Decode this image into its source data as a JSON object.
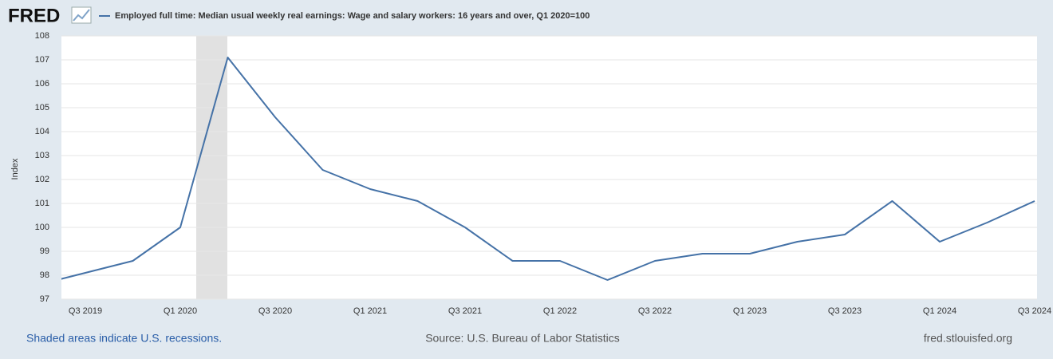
{
  "chart_data": {
    "type": "line",
    "logo": "FRED",
    "y_label": "Index",
    "note": "Shaded areas indicate U.S. recessions.",
    "source": "Source: U.S. Bureau of Labor Statistics",
    "site": "fred.stlouisfed.org",
    "categories": [
      null,
      "Q3 2019",
      null,
      "Q1 2020",
      null,
      "Q3 2020",
      null,
      "Q1 2021",
      null,
      "Q3 2021",
      null,
      "Q1 2022",
      null,
      "Q3 2022",
      null,
      "Q1 2023",
      null,
      "Q3 2023",
      null,
      "Q1 2024",
      null,
      "Q3 2024"
    ],
    "series": [
      {
        "name": "Employed full time: Median usual weekly real earnings: Wage and salary workers: 16 years and over, Q1 2020=100",
        "color": "#4572a7",
        "values": [
          97.6,
          98.1,
          98.6,
          100.0,
          107.1,
          104.6,
          102.4,
          101.6,
          101.1,
          100.0,
          98.6,
          98.6,
          97.8,
          98.6,
          98.9,
          98.9,
          99.4,
          99.7,
          101.1,
          99.4,
          100.2,
          101.1
        ]
      }
    ],
    "ylim": [
      97,
      108
    ],
    "yticks": [
      97,
      98,
      99,
      100,
      101,
      102,
      103,
      104,
      105,
      106,
      107,
      108
    ],
    "grid": true
  }
}
